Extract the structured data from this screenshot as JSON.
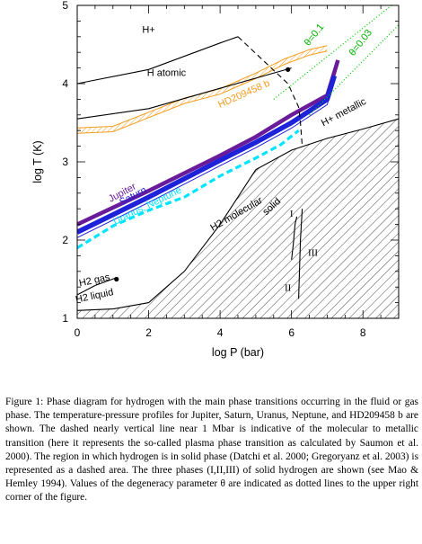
{
  "chart_data": {
    "type": "line",
    "xlabel": "log P (bar)",
    "ylabel": "log T (K)",
    "xlim": [
      0,
      9
    ],
    "ylim": [
      1,
      5
    ],
    "xticks": [
      "0",
      "2",
      "4",
      "6",
      "8"
    ],
    "yticks": [
      "1",
      "2",
      "3",
      "4",
      "5"
    ],
    "grid": false,
    "series": [
      {
        "name": "Jupiter",
        "color": "#6a1b9a",
        "style": "band",
        "x": [
          0,
          2,
          4,
          5,
          6,
          7,
          7.3
        ],
        "y": [
          2.2,
          2.63,
          3.08,
          3.32,
          3.6,
          3.85,
          4.3
        ]
      },
      {
        "name": "Saturn",
        "color": "#1e22d8",
        "style": "band",
        "x": [
          0,
          2,
          4,
          5,
          6,
          7,
          7.2
        ],
        "y": [
          2.1,
          2.55,
          3.02,
          3.25,
          3.5,
          3.8,
          4.1
        ]
      },
      {
        "name": "Uranus, Neptune",
        "color": "#00e5ff",
        "style": "dashed",
        "x": [
          0,
          1,
          2,
          3,
          4,
          5,
          5.7,
          6.2
        ],
        "y": [
          1.9,
          2.18,
          2.38,
          2.55,
          2.82,
          3.05,
          3.22,
          3.4
        ]
      },
      {
        "name": "HD209458 b",
        "color": "#f39c1f",
        "style": "hatched",
        "x": [
          0,
          1,
          2,
          3,
          4,
          5,
          5.8,
          6.5,
          7.0
        ],
        "y": [
          3.4,
          3.42,
          3.6,
          3.78,
          3.9,
          4.1,
          4.28,
          4.4,
          4.45
        ]
      },
      {
        "name": "H+ boundary",
        "color": "#000000",
        "style": "solid",
        "x": [
          0,
          2,
          4,
          4.5
        ],
        "y": [
          4.0,
          4.18,
          4.52,
          4.6
        ]
      },
      {
        "name": "H atomic boundary",
        "color": "#000000",
        "style": "solid",
        "x": [
          0,
          2,
          4,
          6
        ],
        "y": [
          3.55,
          3.68,
          3.94,
          4.2
        ]
      },
      {
        "name": "H2 gas/liquid boundary",
        "color": "#000000",
        "style": "solid",
        "x": [
          0,
          0.5,
          1.1
        ],
        "y": [
          1.3,
          1.42,
          1.52
        ]
      },
      {
        "name": "solid boundary",
        "color": "#000000",
        "style": "solid",
        "x": [
          0,
          1,
          2,
          3,
          4,
          5,
          6,
          7,
          8,
          9
        ],
        "y": [
          1.1,
          1.12,
          1.2,
          1.6,
          2.2,
          2.9,
          3.15,
          3.3,
          3.42,
          3.55
        ]
      },
      {
        "name": "plasma phase transition",
        "color": "#000000",
        "style": "dashed",
        "x": [
          4.5,
          5.2,
          5.9,
          6.2,
          6.25,
          6.3
        ],
        "y": [
          4.6,
          4.3,
          4.0,
          3.7,
          3.5,
          3.2
        ]
      },
      {
        "name": "theta = 0.1",
        "color": "#00cc00",
        "style": "dotted",
        "x": [
          5.5,
          8.8
        ],
        "y": [
          3.8,
          5.0
        ]
      },
      {
        "name": "theta = 0.03",
        "color": "#00cc00",
        "style": "dotted",
        "x": [
          6.5,
          9.0
        ],
        "y": [
          3.6,
          4.75
        ]
      },
      {
        "name": "phase I boundary",
        "color": "#000000",
        "style": "solid",
        "x": [
          6.2,
          6.25,
          6.3
        ],
        "y": [
          1.25,
          2.0,
          2.4
        ]
      },
      {
        "name": "phase II/III boundary",
        "color": "#000000",
        "style": "solid",
        "x": [
          6.0,
          6.05,
          6.1,
          6.15
        ],
        "y": [
          1.75,
          1.95,
          2.2,
          2.3
        ]
      }
    ],
    "points": [
      {
        "x": 1.1,
        "y": 1.5
      },
      {
        "x": 5.9,
        "y": 4.18
      }
    ],
    "region_labels": [
      {
        "text": "H+",
        "x": 2.0,
        "y": 4.65
      },
      {
        "text": "H atomic",
        "x": 2.5,
        "y": 4.1
      },
      {
        "text": "H+ metallic",
        "x": 7.5,
        "y": 3.6
      },
      {
        "text": "H2 molecular",
        "x": 4.5,
        "y": 2.3
      },
      {
        "text": "H2 gas",
        "x": 0.5,
        "y": 1.45
      },
      {
        "text": "H2 liquid",
        "x": 0.5,
        "y": 1.25
      },
      {
        "text": "solid",
        "x": 5.5,
        "y": 2.4
      },
      {
        "text": "I",
        "x": 6.0,
        "y": 2.3
      },
      {
        "text": "II",
        "x": 5.9,
        "y": 1.35
      },
      {
        "text": "III",
        "x": 6.6,
        "y": 1.8
      },
      {
        "text": "θ=0.1",
        "x": 6.7,
        "y": 4.6
      },
      {
        "text": "θ=0.03",
        "x": 8.0,
        "y": 4.5
      }
    ]
  },
  "caption": "Figure 1: Phase diagram for hydrogen with the main phase transitions occurring in the fluid or gas phase. The temperature-pressure profiles for Jupiter, Saturn, Uranus, Neptune, and HD209458 b are shown. The dashed nearly vertical line near 1 Mbar is indicative of the molecular to metallic transition (here it represents the so-called plasma phase transition as calculated by Saumon et al. 2000). The region in which hydrogen is in solid phase (Datchi et al. 2000; Gregoryanz et al. 2003) is represented as a dashed area. The three phases (I,II,III) of solid hydrogen are shown (see Mao & Hemley 1994). Values of the degeneracy parameter θ are indicated as dotted lines to the upper right corner of the figure."
}
